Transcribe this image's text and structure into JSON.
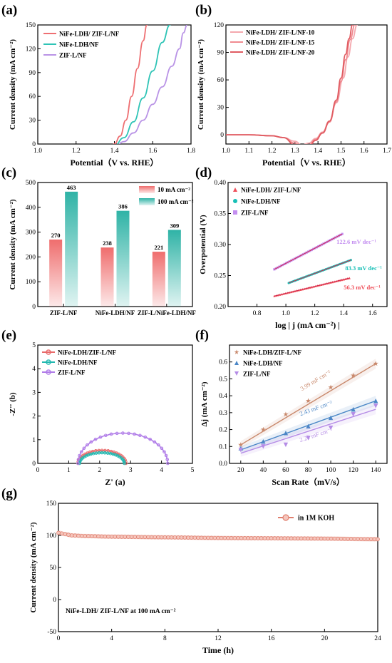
{
  "panels": {
    "a": {
      "letter": "(a)"
    },
    "b": {
      "letter": "(b)"
    },
    "c": {
      "letter": "(c)"
    },
    "d": {
      "letter": "(d)"
    },
    "e": {
      "letter": "(e)"
    },
    "f": {
      "letter": "(f)"
    },
    "g": {
      "letter": "(g)"
    }
  },
  "chart_data": [
    {
      "id": "a",
      "type": "line",
      "xlabel": "Potential（V vs. RHE）",
      "ylabel": "Current density (mA cm⁻²)",
      "xlim": [
        1.0,
        1.8
      ],
      "ylim": [
        0,
        150
      ],
      "xticks": [
        1.0,
        1.2,
        1.4,
        1.6,
        1.8
      ],
      "yticks": [
        0,
        30,
        60,
        90,
        120,
        150
      ],
      "legend": "top-left",
      "series": [
        {
          "name": "NiFe-LDH/ ZIF-L/NF",
          "color": "#ee6f72",
          "x": [
            1.0,
            1.1,
            1.2,
            1.25,
            1.28,
            1.31,
            1.34,
            1.37,
            1.4,
            1.43,
            1.46,
            1.49,
            1.52,
            1.55,
            1.57,
            1.585
          ],
          "y": [
            -1,
            -1,
            -1.5,
            -3,
            -8,
            -12,
            -13,
            -7,
            0,
            10,
            30,
            60,
            95,
            130,
            150,
            165
          ]
        },
        {
          "name": "NiFe-LDH/NF",
          "color": "#2ec4b6",
          "x": [
            1.0,
            1.1,
            1.2,
            1.3,
            1.35,
            1.4,
            1.45,
            1.5,
            1.55,
            1.6,
            1.65,
            1.69,
            1.71
          ],
          "y": [
            -1,
            -1,
            -1.5,
            -2,
            -3,
            -2,
            8,
            28,
            58,
            92,
            128,
            150,
            165
          ]
        },
        {
          "name": "ZIF-L/NF",
          "color": "#b993e6",
          "x": [
            1.0,
            1.05,
            1.1,
            1.2,
            1.3,
            1.4,
            1.45,
            1.5,
            1.55,
            1.6,
            1.65,
            1.7,
            1.74,
            1.76,
            1.78
          ],
          "y": [
            -4,
            -6,
            -5,
            -4,
            -4,
            -4,
            3,
            14,
            30,
            50,
            72,
            98,
            120,
            140,
            150
          ]
        }
      ]
    },
    {
      "id": "b",
      "type": "line",
      "xlabel": "Potential（V vs. RHE）",
      "ylabel": "Current density (mA cm⁻²)",
      "xlim": [
        1.0,
        1.7
      ],
      "ylim": [
        -10,
        120
      ],
      "xticks": [
        1.0,
        1.1,
        1.2,
        1.3,
        1.4,
        1.5,
        1.6,
        1.7
      ],
      "yticks": [
        0,
        30,
        60,
        90,
        120
      ],
      "legend": "top-left",
      "series": [
        {
          "name": "NiFe-LDH/ ZIF-L/NF-10",
          "color": "#f4a8ae",
          "x": [
            1.0,
            1.1,
            1.2,
            1.25,
            1.3,
            1.33,
            1.36,
            1.39,
            1.42,
            1.45,
            1.48,
            1.51,
            1.53,
            1.55,
            1.57,
            1.58
          ],
          "y": [
            0,
            0,
            -1,
            -3,
            -7,
            -11,
            -9,
            -4,
            3,
            15,
            35,
            62,
            85,
            105,
            120,
            130
          ]
        },
        {
          "name": "NiFe-LDH/ ZIF-L/NF-15",
          "color": "#f08a90",
          "x": [
            1.0,
            1.1,
            1.2,
            1.25,
            1.3,
            1.33,
            1.36,
            1.39,
            1.42,
            1.45,
            1.48,
            1.5,
            1.52,
            1.54,
            1.56,
            1.57
          ],
          "y": [
            0,
            0,
            -1,
            -3,
            -9,
            -14,
            -11,
            -5,
            2,
            14,
            36,
            58,
            82,
            104,
            120,
            130
          ]
        },
        {
          "name": "NiFe-LDH/ ZIF-L/NF-20",
          "color": "#e05c62",
          "x": [
            1.0,
            1.1,
            1.2,
            1.25,
            1.3,
            1.33,
            1.36,
            1.39,
            1.42,
            1.45,
            1.48,
            1.5,
            1.52,
            1.535,
            1.55,
            1.56
          ],
          "y": [
            0,
            0,
            -1,
            -3,
            -11,
            -16,
            -13,
            -6,
            2,
            15,
            38,
            62,
            88,
            105,
            120,
            130
          ]
        }
      ]
    },
    {
      "id": "c",
      "type": "bar",
      "xlabel": "",
      "ylabel": "Current density (mA cm⁻²)",
      "ylim": [
        0,
        500
      ],
      "yticks": [
        0,
        100,
        200,
        300,
        400,
        500
      ],
      "legend": "top-center",
      "categories": [
        "ZIF-L/NF",
        "NiFe-LDH/NF",
        "ZIF-L/NiFe-LDH/NF"
      ],
      "series": [
        {
          "name": "10 mA cm⁻²",
          "color": "#ef6d6d",
          "values": [
            270,
            238,
            221
          ]
        },
        {
          "name": "100 mA cm⁻²",
          "color": "#2fb3a6",
          "values": [
            463,
            386,
            309
          ]
        }
      ]
    },
    {
      "id": "d",
      "type": "scatter",
      "xlabel": "log | j (mA cm⁻²) |",
      "ylabel": "Overpotential (V)",
      "xlim": [
        0.6,
        1.7
      ],
      "ylim": [
        0.2,
        0.4
      ],
      "xticks": [
        0.8,
        1.0,
        1.2,
        1.4,
        1.6
      ],
      "yticks": [
        0.2,
        0.25,
        0.3,
        0.35,
        0.4
      ],
      "legend": "top-left",
      "series": [
        {
          "name": "NiFe-LDH/ ZIF-L/NF",
          "color": "#ef4f5a",
          "marker": "triangle",
          "x0": 0.92,
          "x1": 1.44,
          "y0": 0.217,
          "y1": 0.246,
          "slope_label": "56.3  mV dec⁻¹"
        },
        {
          "name": "NiFe-LDH/NF",
          "color": "#17bfb6",
          "marker": "circle",
          "x0": 1.02,
          "x1": 1.45,
          "y0": 0.238,
          "y1": 0.275,
          "slope_label": "83.3  mV dec⁻¹"
        },
        {
          "name": "ZIF-L/NF",
          "color": "#c48ff0",
          "marker": "square",
          "x0": 0.92,
          "x1": 1.39,
          "y0": 0.26,
          "y1": 0.317,
          "slope_label": "122.6  mV dec⁻¹"
        }
      ]
    },
    {
      "id": "e",
      "type": "line",
      "xlabel": "Z' (a)",
      "ylabel": "-Z'' (b)",
      "xlim": [
        0,
        5
      ],
      "ylim": [
        0,
        5
      ],
      "xticks": [
        0,
        1,
        2,
        3,
        4,
        5
      ],
      "yticks": [
        0,
        1,
        2,
        3,
        4,
        5
      ],
      "legend": "top-left",
      "series": [
        {
          "name": "NiFe-LDH/ZIF-L/NF",
          "color": "#e86a6a",
          "x0": 1.3,
          "x1": 2.85,
          "peak": 0.55
        },
        {
          "name": "NiFe-LDH/NF",
          "color": "#22b8b0",
          "x0": 1.35,
          "x1": 2.8,
          "peak": 0.45
        },
        {
          "name": "ZIF-L/NF",
          "color": "#b07ce8",
          "x0": 1.3,
          "x1": 4.2,
          "peak": 1.28
        }
      ]
    },
    {
      "id": "f",
      "type": "scatter",
      "xlabel": "Scan Rate（mV/s）",
      "ylabel": "Δj (mA cm⁻²)",
      "xlim": [
        10,
        150
      ],
      "ylim": [
        0,
        0.7
      ],
      "xticks": [
        20,
        40,
        60,
        80,
        100,
        120,
        140
      ],
      "yticks": [
        0.0,
        0.1,
        0.2,
        0.3,
        0.4,
        0.5,
        0.6
      ],
      "legend": "top-left",
      "x": [
        20,
        40,
        60,
        80,
        100,
        120,
        140
      ],
      "series": [
        {
          "name": "NiFe-LDH/ZIF-L/NF",
          "color": "#c8876a",
          "marker": "star",
          "values": [
            0.11,
            0.2,
            0.29,
            0.37,
            0.45,
            0.52,
            0.59
          ],
          "fit": [
            0.11,
            0.59
          ],
          "slope_label": "3.99  mF cm⁻²"
        },
        {
          "name": "NiFe-LDH/NF",
          "color": "#4a86c6",
          "marker": "triangle-up",
          "values": [
            0.09,
            0.13,
            0.18,
            0.22,
            0.27,
            0.32,
            0.37
          ],
          "fit": [
            0.08,
            0.37
          ],
          "slope_label": "2.43  mF cm⁻²"
        },
        {
          "name": "ZIF-L/NF",
          "color": "#b58ce6",
          "marker": "triangle-down",
          "values": [
            0.08,
            0.1,
            0.11,
            0.15,
            0.21,
            0.29,
            0.34
          ],
          "fit": [
            0.06,
            0.32
          ],
          "slope_label": "2.21  mF cm⁻²"
        }
      ]
    },
    {
      "id": "g",
      "type": "line",
      "xlabel": "Time (h)",
      "ylabel": "Current density (mA cm⁻²)",
      "xlim": [
        0,
        24
      ],
      "ylim": [
        -50,
        150
      ],
      "xticks": [
        0,
        4,
        8,
        12,
        16,
        20,
        24
      ],
      "yticks": [
        -50,
        0,
        50,
        100,
        150
      ],
      "legend": "top-right",
      "annotation": "NiFe-LDH/ ZIF-L/NF at 100 mA cm⁻²",
      "series": [
        {
          "name": "in 1M KOH",
          "color": "#e07f6e",
          "x": [
            0,
            0.5,
            1,
            2,
            4,
            8,
            12,
            16,
            20,
            24
          ],
          "y": [
            104,
            102,
            100,
            99,
            98,
            97,
            96,
            95.5,
            95,
            94
          ]
        }
      ]
    }
  ]
}
